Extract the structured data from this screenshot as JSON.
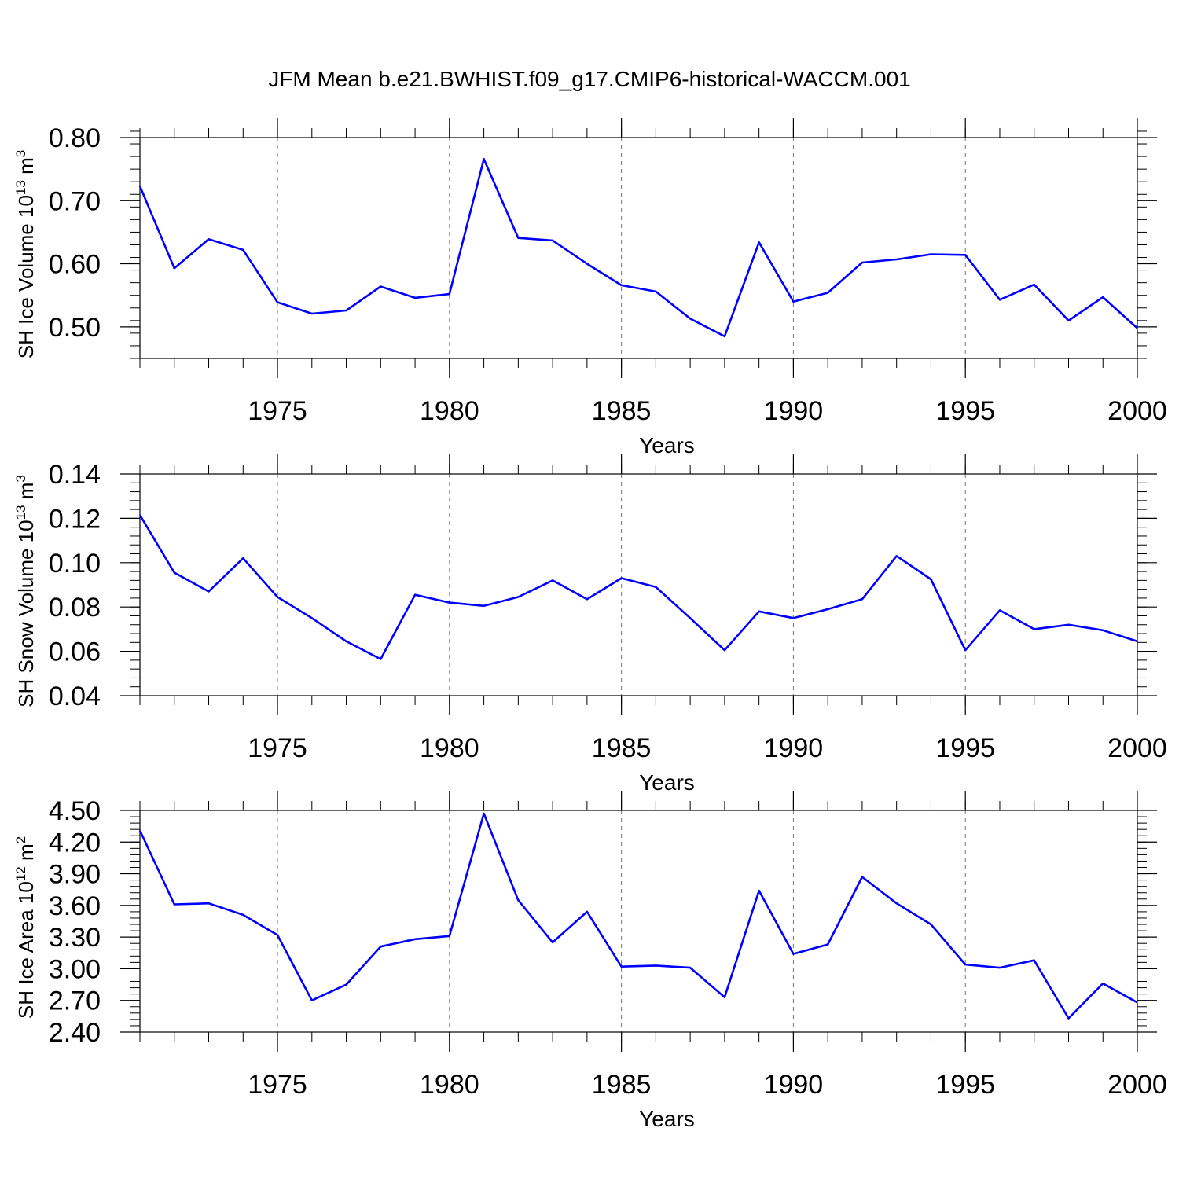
{
  "figure": {
    "title": "JFM Mean b.e21.BWHIST.f09_g17.CMIP6-historical-WACCM.001"
  },
  "chart_data": [
    {
      "type": "line",
      "title": "",
      "xlabel": "Years",
      "ylabel": "SH Ice Volume 10",
      "ylabel_exp": "13",
      "ylabel_unit": " m",
      "ylabel_unit_exp": "3",
      "xlim": [
        1971,
        2000
      ],
      "ylim": [
        0.45,
        0.8
      ],
      "xticks": [
        "1975",
        "1980",
        "1985",
        "1990",
        "1995",
        "2000"
      ],
      "yticks": [
        "0.50",
        "0.60",
        "0.70",
        "0.80"
      ],
      "line_color": "#0000ff",
      "series": [
        {
          "name": "SH Ice Volume",
          "x": [
            1971,
            1972,
            1973,
            1974,
            1975,
            1976,
            1977,
            1978,
            1979,
            1980,
            1981,
            1982,
            1983,
            1984,
            1985,
            1986,
            1987,
            1988,
            1989,
            1990,
            1991,
            1992,
            1993,
            1994,
            1995,
            1996,
            1997,
            1998,
            1999,
            2000
          ],
          "values": [
            0.723,
            0.593,
            0.639,
            0.622,
            0.539,
            0.521,
            0.526,
            0.564,
            0.546,
            0.552,
            0.766,
            0.641,
            0.637,
            0.6,
            0.566,
            0.556,
            0.513,
            0.485,
            0.634,
            0.54,
            0.554,
            0.602,
            0.607,
            0.615,
            0.614,
            0.543,
            0.567,
            0.51,
            0.547,
            0.498
          ]
        }
      ]
    },
    {
      "type": "line",
      "title": "",
      "xlabel": "Years",
      "ylabel": "SH Snow Volume 10",
      "ylabel_exp": "13",
      "ylabel_unit": " m",
      "ylabel_unit_exp": "3",
      "xlim": [
        1971,
        2000
      ],
      "ylim": [
        0.04,
        0.14
      ],
      "xticks": [
        "1975",
        "1980",
        "1985",
        "1990",
        "1995",
        "2000"
      ],
      "yticks": [
        "0.04",
        "0.06",
        "0.08",
        "0.10",
        "0.12",
        "0.14"
      ],
      "line_color": "#0000ff",
      "series": [
        {
          "name": "SH Snow Volume",
          "x": [
            1971,
            1972,
            1973,
            1974,
            1975,
            1976,
            1977,
            1978,
            1979,
            1980,
            1981,
            1982,
            1983,
            1984,
            1985,
            1986,
            1987,
            1988,
            1989,
            1990,
            1991,
            1992,
            1993,
            1994,
            1995,
            1996,
            1997,
            1998,
            1999,
            2000
          ],
          "values": [
            0.1215,
            0.0955,
            0.087,
            0.102,
            0.0845,
            0.075,
            0.0645,
            0.0565,
            0.0855,
            0.082,
            0.0805,
            0.0845,
            0.092,
            0.0835,
            0.093,
            0.089,
            0.075,
            0.0605,
            0.078,
            0.075,
            0.079,
            0.0835,
            0.103,
            0.0925,
            0.0605,
            0.0785,
            0.07,
            0.072,
            0.0695,
            0.0645
          ]
        }
      ]
    },
    {
      "type": "line",
      "title": "",
      "xlabel": "Years",
      "ylabel": "SH Ice Area 10",
      "ylabel_exp": "12",
      "ylabel_unit": " m",
      "ylabel_unit_exp": "2",
      "xlim": [
        1971,
        2000
      ],
      "ylim": [
        2.4,
        4.5
      ],
      "xticks": [
        "1975",
        "1980",
        "1985",
        "1990",
        "1995",
        "2000"
      ],
      "yticks": [
        "2.40",
        "2.70",
        "3.00",
        "3.30",
        "3.60",
        "3.90",
        "4.20",
        "4.50"
      ],
      "line_color": "#0000ff",
      "series": [
        {
          "name": "SH Ice Area",
          "x": [
            1971,
            1972,
            1973,
            1974,
            1975,
            1976,
            1977,
            1978,
            1979,
            1980,
            1981,
            1982,
            1983,
            1984,
            1985,
            1986,
            1987,
            1988,
            1989,
            1990,
            1991,
            1992,
            1993,
            1994,
            1995,
            1996,
            1997,
            1998,
            1999,
            2000
          ],
          "values": [
            4.31,
            3.61,
            3.62,
            3.51,
            3.32,
            2.7,
            2.85,
            3.21,
            3.28,
            3.31,
            4.47,
            3.65,
            3.25,
            3.54,
            3.02,
            3.03,
            3.01,
            2.73,
            3.74,
            3.14,
            3.23,
            3.87,
            3.62,
            3.42,
            3.04,
            3.01,
            3.08,
            2.53,
            2.86,
            2.68
          ]
        }
      ]
    }
  ]
}
